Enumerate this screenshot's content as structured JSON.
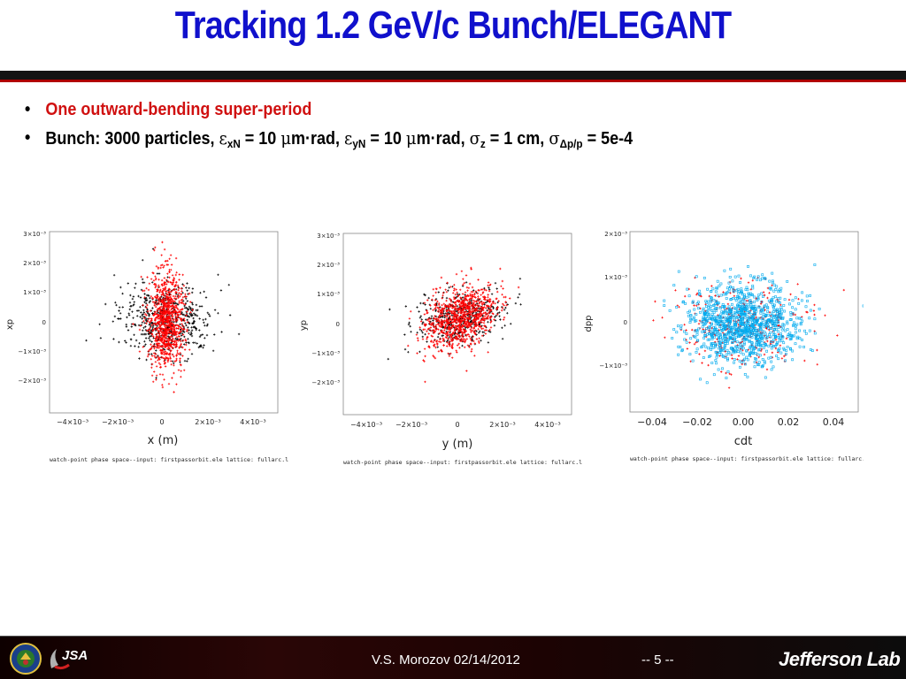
{
  "title": "Tracking 1.2 GeV/c Bunch/ELEGANT",
  "bullets": [
    {
      "text": "One outward-bending super-period"
    },
    {
      "prefix": "Bunch: 3000 particles, ",
      "eps_sym": "ε",
      "eps_x_sub": "xN",
      "eps_x_val": " = 10 ",
      "mu": "μ",
      "unit": "m·rad, ",
      "eps_y_sub": "yN",
      "eps_y_val": " = 10 ",
      "unit2": "m·rad, ",
      "sigma": "σ",
      "sigz_sub": "z",
      "sigz_val": " = 1 cm, ",
      "sigdp_sub": "Δp/p",
      "sigdp_val": " = 5e-4"
    }
  ],
  "caption": "watch-point  phase  space--input:  firstpassorbit.ele     lattice:  fullarc.lte",
  "plots": [
    {
      "xlabel": "x (m)",
      "ylabel": "xp",
      "xticks": [
        "−4×10⁻³",
        "−2×10⁻³",
        "0",
        "2×10⁻³",
        "4×10⁻³"
      ],
      "yticks": [
        "3×10⁻³",
        "2×10⁻³",
        "1×10⁻³",
        "0",
        "−1×10⁻³",
        "−2×10⁻³"
      ]
    },
    {
      "xlabel": "y (m)",
      "ylabel": "yp",
      "xticks": [
        "−4×10⁻³",
        "−2×10⁻³",
        "0",
        "2×10⁻³",
        "4×10⁻³"
      ],
      "yticks": [
        "3×10⁻³",
        "2×10⁻³",
        "1×10⁻³",
        "0",
        "−1×10⁻³",
        "−2×10⁻³"
      ]
    },
    {
      "xlabel": "cdt",
      "ylabel": "dpp",
      "xticks": [
        "−0.04",
        "−0.02",
        "0.00",
        "0.02",
        "0.04"
      ],
      "yticks": [
        "2×10⁻³",
        "1×10⁻³",
        "0",
        "−1×10⁻³"
      ]
    }
  ],
  "colors": {
    "title": "#1010cc",
    "bullet1": "#d01010",
    "scatter_red": "#ff0000",
    "scatter_black": "#000000",
    "scatter_cyan": "#00aaee"
  },
  "footer": {
    "author": "V.S. Morozov 02/14/2012",
    "page": "-- 5 --",
    "logo_text": "Jefferson Lab",
    "jsa_text": "JSA",
    "icons": [
      "doe-seal-icon",
      "jsa-logo-icon"
    ]
  }
}
